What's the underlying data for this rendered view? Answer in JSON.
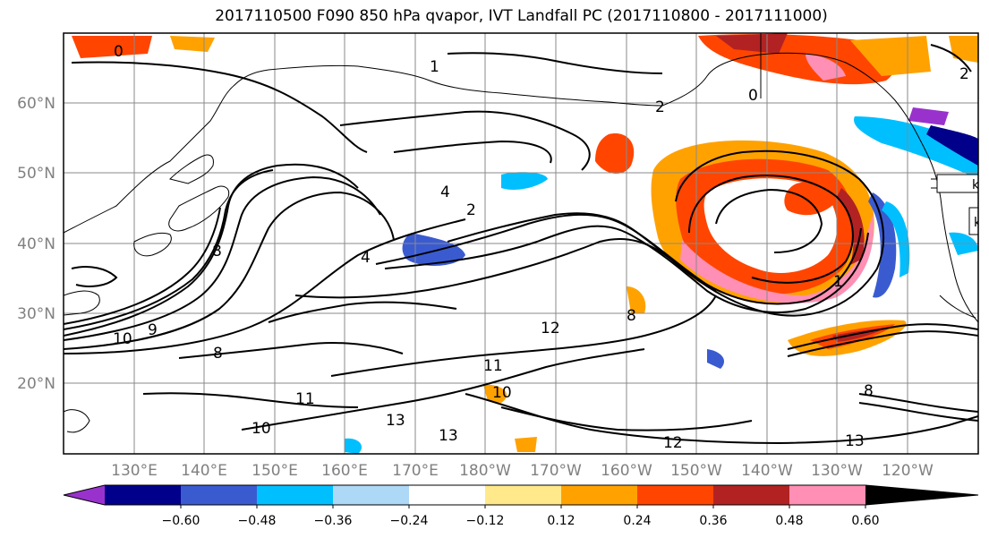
{
  "title": "2017110500 F090 850 hPa qvapor, IVT Landfall PC (2017110800 - 2017111000)",
  "lat_labels": [
    "60°N",
    "50°N",
    "40°N",
    "30°N",
    "20°N"
  ],
  "lon_labels": [
    "130°E",
    "140°E",
    "150°E",
    "160°E",
    "170°E",
    "180°W",
    "170°W",
    "160°W",
    "150°W",
    "140°W",
    "130°W",
    "120°W"
  ],
  "colorbar": {
    "colors": [
      "#9932cc",
      "#00008b",
      "#3a5bd0",
      "#00bfff",
      "#add8f6",
      "#ffffff",
      "#ffe98a",
      "#ffa200",
      "#ff4500",
      "#b22222",
      "#ff8fb4"
    ],
    "tick_labels": [
      "−0.60",
      "−0.48",
      "−0.36",
      "−0.24",
      "−0.12",
      "0.12",
      "0.24",
      "0.36",
      "0.48",
      "0.60"
    ]
  },
  "contour_labels": [
    "0",
    "1",
    "2",
    "4",
    "8",
    "10",
    "9",
    "11",
    "12",
    "13",
    "10",
    "8",
    "4",
    "2",
    "1",
    "13",
    "8",
    "10",
    "11",
    "12",
    "8",
    "13",
    "0",
    "2"
  ],
  "clipped_labels": [
    "k",
    "k"
  ]
}
